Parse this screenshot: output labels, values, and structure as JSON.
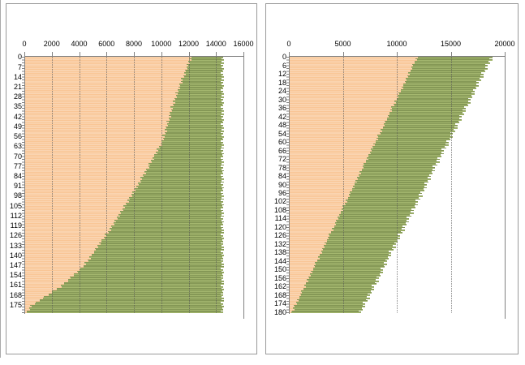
{
  "page": {
    "background": "#ffffff",
    "panel_border_color": "#999999",
    "axis_color": "#808080",
    "gridline_color": "#555555"
  },
  "chart_data": [
    {
      "type": "bar",
      "orientation": "horizontal",
      "stacked": true,
      "title": "",
      "legend": "none",
      "grid": true,
      "x_axis": {
        "position": "top",
        "min": 0,
        "max": 16000,
        "tick_step": 2000,
        "ticks": [
          0,
          2000,
          4000,
          6000,
          8000,
          10000,
          12000,
          14000,
          16000
        ]
      },
      "y_axis": {
        "position": "left",
        "categories": 181,
        "first": 0,
        "last": 180,
        "label_step": 7,
        "tick_labels": [
          0,
          7,
          14,
          21,
          28,
          35,
          42,
          49,
          56,
          63,
          70,
          77,
          84,
          91,
          98,
          105,
          112,
          119,
          126,
          133,
          140,
          147,
          154,
          161,
          168,
          175
        ]
      },
      "series": [
        {
          "name": "segment-1-orange",
          "fill": "#F9C696",
          "stripe": "#FCE3C9",
          "values": [
            12135,
            11990,
            12130,
            11935,
            12020,
            11780,
            11915,
            11795,
            11875,
            11680,
            11735,
            11590,
            11730,
            11535,
            11620,
            11380,
            11515,
            11395,
            11475,
            11280,
            11335,
            11190,
            11330,
            11135,
            11220,
            10980,
            11115,
            10995,
            11075,
            10880,
            10935,
            10800,
            10950,
            10765,
            10860,
            10630,
            10775,
            10665,
            10755,
            10570,
            10635,
            10500,
            10650,
            10465,
            10560,
            10330,
            10475,
            10365,
            10455,
            10270,
            10335,
            10200,
            10350,
            10165,
            10260,
            10030,
            10175,
            10065,
            10155,
            9970,
            10035,
            9870,
            9995,
            9780,
            9845,
            9590,
            9705,
            9565,
            9630,
            9415,
            9450,
            9290,
            9410,
            9195,
            9265,
            9005,
            9120,
            8985,
            9045,
            8830,
            8870,
            8705,
            8825,
            8615,
            8680,
            8420,
            8540,
            8400,
            8460,
            8250,
            8285,
            8115,
            8230,
            8010,
            8070,
            7805,
            7915,
            7770,
            7825,
            7605,
            7635,
            7465,
            7580,
            7360,
            7420,
            7155,
            7265,
            7120,
            7175,
            6955,
            6985,
            6815,
            6930,
            6710,
            6770,
            6505,
            6615,
            6470,
            6525,
            6305,
            6335,
            6155,
            6260,
            6035,
            6085,
            5810,
            5910,
            5755,
            5800,
            5575,
            5595,
            5415,
            5520,
            5290,
            5345,
            5070,
            5170,
            5015,
            5060,
            4835,
            4855,
            4675,
            4780,
            4550,
            4600,
            4330,
            4430,
            4275,
            4280,
            4010,
            3990,
            3775,
            3840,
            3570,
            3580,
            3265,
            3325,
            3130,
            3140,
            2870,
            2850,
            2630,
            2655,
            2340,
            2310,
            1950,
            1970,
            1730,
            1695,
            1385,
            1320,
            1060,
            1080,
            770,
            735,
            380,
            475,
            315,
            355,
            120,
            135
          ]
        },
        {
          "name": "segment-2-green",
          "fill": "#A4B76F",
          "stripe": "#66793C",
          "note": "values are cumulative bar ends (stacked on segment 1)",
          "values": [
            14450,
            14320,
            14520,
            14370,
            14490,
            14260,
            14440,
            14340,
            14530,
            14380,
            14470,
            14300,
            14450,
            14320,
            14520,
            14370,
            14490,
            14260,
            14440,
            14340,
            14530,
            14380,
            14470,
            14300,
            14450,
            14320,
            14520,
            14370,
            14490,
            14260,
            14440,
            14340,
            14530,
            14380,
            14470,
            14300,
            14450,
            14320,
            14520,
            14370,
            14490,
            14260,
            14440,
            14340,
            14530,
            14380,
            14470,
            14300,
            14450,
            14320,
            14520,
            14370,
            14490,
            14260,
            14440,
            14340,
            14530,
            14380,
            14470,
            14300,
            14450,
            14320,
            14520,
            14370,
            14490,
            14260,
            14440,
            14340,
            14530,
            14380,
            14470,
            14300,
            14450,
            14320,
            14520,
            14370,
            14490,
            14260,
            14440,
            14340,
            14530,
            14380,
            14470,
            14300,
            14450,
            14320,
            14520,
            14370,
            14490,
            14260,
            14440,
            14340,
            14530,
            14380,
            14470,
            14300,
            14450,
            14320,
            14520,
            14370,
            14490,
            14260,
            14440,
            14340,
            14530,
            14380,
            14470,
            14300,
            14450,
            14320,
            14520,
            14370,
            14490,
            14260,
            14440,
            14340,
            14530,
            14380,
            14470,
            14300,
            14450,
            14320,
            14520,
            14370,
            14490,
            14260,
            14440,
            14340,
            14530,
            14380,
            14470,
            14300,
            14450,
            14320,
            14520,
            14370,
            14490,
            14260,
            14440,
            14340,
            14530,
            14380,
            14470,
            14300,
            14450,
            14320,
            14520,
            14370,
            14490,
            14260,
            14440,
            14340,
            14530,
            14380,
            14470,
            14300,
            14450,
            14320,
            14520,
            14370,
            14490,
            14260,
            14440,
            14340,
            14530,
            14380,
            14470,
            14300,
            14450,
            14320,
            14520,
            14370,
            14490,
            14260,
            14440,
            14340,
            14530,
            14380,
            14470,
            14300,
            14450
          ]
        }
      ]
    },
    {
      "type": "bar",
      "orientation": "horizontal",
      "stacked": true,
      "title": "",
      "legend": "none",
      "grid": true,
      "x_axis": {
        "position": "top",
        "min": 0,
        "max": 20000,
        "tick_step": 5000,
        "ticks": [
          0,
          5000,
          10000,
          15000,
          20000
        ]
      },
      "y_axis": {
        "position": "left",
        "categories": 181,
        "first": 0,
        "last": 180,
        "label_step": 6,
        "tick_labels": [
          0,
          6,
          12,
          18,
          24,
          30,
          36,
          42,
          48,
          54,
          60,
          66,
          72,
          78,
          84,
          90,
          96,
          102,
          108,
          114,
          120,
          126,
          132,
          138,
          144,
          150,
          156,
          162,
          168,
          174,
          180
        ]
      },
      "series": [
        {
          "name": "segment-1-orange",
          "fill": "#F9C696",
          "stripe": "#FCE3C9",
          "values": [
            11845,
            11650,
            11790,
            11565,
            11610,
            11370,
            11445,
            11285,
            11385,
            11200,
            11200,
            11005,
            11145,
            10920,
            10965,
            10725,
            10800,
            10640,
            10740,
            10555,
            10555,
            10360,
            10500,
            10275,
            10320,
            10080,
            10155,
            9995,
            10095,
            9910,
            9910,
            9715,
            9855,
            9630,
            9675,
            9435,
            9510,
            9350,
            9450,
            9265,
            9265,
            9070,
            9210,
            8985,
            9030,
            8790,
            8865,
            8705,
            8805,
            8620,
            8620,
            8425,
            8565,
            8340,
            8385,
            8145,
            8220,
            8060,
            8160,
            7975,
            7975,
            7780,
            7920,
            7695,
            7740,
            7500,
            7575,
            7415,
            7515,
            7330,
            7330,
            7135,
            7275,
            7050,
            7095,
            6855,
            6930,
            6770,
            6870,
            6685,
            6685,
            6490,
            6630,
            6405,
            6450,
            6210,
            6285,
            6125,
            6225,
            6040,
            6040,
            5845,
            5985,
            5760,
            5805,
            5565,
            5640,
            5480,
            5580,
            5395,
            5395,
            5200,
            5340,
            5115,
            5160,
            4920,
            4995,
            4835,
            4935,
            4750,
            4750,
            4555,
            4695,
            4470,
            4515,
            4275,
            4350,
            4190,
            4290,
            4105,
            4105,
            3910,
            4050,
            3825,
            3870,
            3630,
            3705,
            3545,
            3645,
            3460,
            3460,
            3265,
            3405,
            3180,
            3225,
            2985,
            3060,
            2900,
            3000,
            2815,
            2815,
            2620,
            2760,
            2535,
            2580,
            2340,
            2415,
            2255,
            2355,
            2170,
            2170,
            1975,
            2115,
            1890,
            1935,
            1695,
            1770,
            1610,
            1710,
            1525,
            1525,
            1330,
            1470,
            1245,
            1290,
            1050,
            1125,
            965,
            1065,
            880,
            880,
            685,
            825,
            600,
            645,
            405,
            480,
            320,
            420,
            235,
            150
          ]
        },
        {
          "name": "segment-2-green",
          "fill": "#A4B76F",
          "stripe": "#66793C",
          "note": "values are cumulative bar ends (stacked on segment 1)",
          "values": [
            18780,
            18480,
            18785,
            18435,
            18570,
            18130,
            18355,
            18125,
            18350,
            18060,
            18135,
            17775,
            17970,
            17670,
            17975,
            17625,
            17760,
            17320,
            17545,
            17315,
            17540,
            17250,
            17325,
            16965,
            17160,
            16860,
            17165,
            16815,
            16950,
            16510,
            16735,
            16505,
            16730,
            16440,
            16515,
            16155,
            16345,
            16045,
            16350,
            16000,
            16135,
            15695,
            15920,
            15690,
            15915,
            15625,
            15700,
            15340,
            15535,
            15235,
            15540,
            15190,
            15325,
            14885,
            15110,
            14880,
            15105,
            14815,
            14890,
            14530,
            14725,
            14425,
            14730,
            14380,
            14515,
            14075,
            14300,
            14070,
            14295,
            14005,
            14080,
            13720,
            13915,
            13615,
            13920,
            13570,
            13705,
            13265,
            13490,
            13260,
            13485,
            13195,
            13270,
            12910,
            13100,
            12800,
            13105,
            12755,
            12890,
            12450,
            12675,
            12445,
            12670,
            12380,
            12455,
            12095,
            12290,
            11990,
            12295,
            11945,
            12080,
            11640,
            11865,
            11635,
            11860,
            11570,
            11645,
            11285,
            11480,
            11180,
            11485,
            11135,
            11270,
            10830,
            11055,
            10825,
            11050,
            10760,
            10835,
            10475,
            10670,
            10370,
            10675,
            10325,
            10460,
            10020,
            10245,
            10015,
            10240,
            9950,
            10025,
            9665,
            9855,
            9555,
            9860,
            9510,
            9645,
            9205,
            9430,
            9200,
            9425,
            9135,
            9210,
            8850,
            9045,
            8745,
            9050,
            8700,
            8835,
            8395,
            8620,
            8390,
            8615,
            8325,
            8400,
            8040,
            8235,
            7935,
            8240,
            7890,
            8025,
            7585,
            7810,
            7580,
            7805,
            7515,
            7590,
            7230,
            7425,
            7125,
            7430,
            7080,
            7215,
            6775,
            7000,
            6770,
            6995,
            6705,
            6780,
            6420,
            6610
          ]
        }
      ]
    }
  ]
}
